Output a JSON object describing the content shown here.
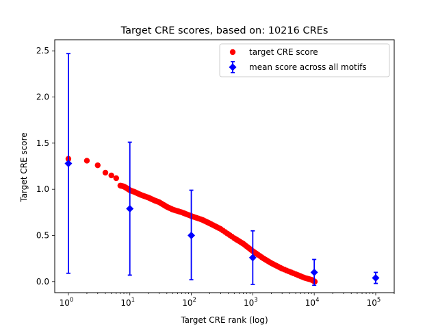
{
  "chart_data": {
    "type": "scatter",
    "title": "Target CRE scores, based on: 10216 CREs",
    "xlabel": "Target CRE rank (log)",
    "ylabel": "Target CRE score",
    "xscale": "log",
    "xlim": [
      0.6,
      200000
    ],
    "ylim": [
      -0.12,
      2.62
    ],
    "grid": false,
    "legend_position": "top-right",
    "x_ticks": [
      {
        "value": 1,
        "base": "10",
        "exp": "0"
      },
      {
        "value": 10,
        "base": "10",
        "exp": "1"
      },
      {
        "value": 100,
        "base": "10",
        "exp": "2"
      },
      {
        "value": 1000,
        "base": "10",
        "exp": "3"
      },
      {
        "value": 10000,
        "base": "10",
        "exp": "4"
      },
      {
        "value": 100000,
        "base": "10",
        "exp": "5"
      }
    ],
    "y_ticks": [
      {
        "value": 0.0,
        "label": "0.0"
      },
      {
        "value": 0.5,
        "label": "0.5"
      },
      {
        "value": 1.0,
        "label": "1.0"
      },
      {
        "value": 1.5,
        "label": "1.5"
      },
      {
        "value": 2.0,
        "label": "2.0"
      },
      {
        "value": 2.5,
        "label": "2.5"
      }
    ],
    "series": [
      {
        "name": "target CRE score",
        "kind": "scatter",
        "marker": "circle",
        "color": "#ff0000",
        "points": [
          [
            1,
            1.33
          ],
          [
            2,
            1.31
          ],
          [
            3,
            1.26
          ],
          [
            4,
            1.18
          ],
          [
            5,
            1.15
          ],
          [
            6,
            1.12
          ],
          [
            7,
            1.04
          ],
          [
            8,
            1.03
          ],
          [
            9,
            1.01
          ],
          [
            10,
            0.99
          ],
          [
            12,
            0.97
          ],
          [
            15,
            0.94
          ],
          [
            20,
            0.91
          ],
          [
            25,
            0.88
          ],
          [
            30,
            0.86
          ],
          [
            40,
            0.81
          ],
          [
            50,
            0.78
          ],
          [
            70,
            0.75
          ],
          [
            100,
            0.71
          ],
          [
            150,
            0.67
          ],
          [
            200,
            0.63
          ],
          [
            300,
            0.57
          ],
          [
            500,
            0.47
          ],
          [
            700,
            0.41
          ],
          [
            1000,
            0.33
          ],
          [
            1500,
            0.25
          ],
          [
            2000,
            0.2
          ],
          [
            3000,
            0.14
          ],
          [
            5000,
            0.08
          ],
          [
            7000,
            0.04
          ],
          [
            9000,
            0.02
          ],
          [
            10216,
            0.0
          ]
        ]
      },
      {
        "name": "mean score across all motifs",
        "kind": "errorbar",
        "marker": "diamond",
        "color": "#0000ff",
        "points": [
          {
            "x": 1,
            "y": 1.28,
            "low": 0.09,
            "high": 2.47
          },
          {
            "x": 10,
            "y": 0.79,
            "low": 0.07,
            "high": 1.51
          },
          {
            "x": 100,
            "y": 0.5,
            "low": 0.02,
            "high": 0.99
          },
          {
            "x": 1000,
            "y": 0.26,
            "low": -0.03,
            "high": 0.55
          },
          {
            "x": 10000,
            "y": 0.1,
            "low": -0.04,
            "high": 0.24
          },
          {
            "x": 100000,
            "y": 0.04,
            "low": -0.02,
            "high": 0.1
          }
        ]
      }
    ]
  }
}
